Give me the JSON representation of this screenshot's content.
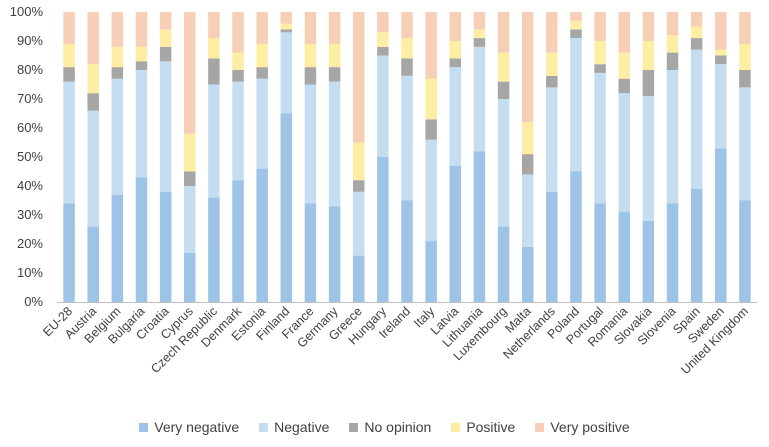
{
  "chart_data": {
    "type": "bar",
    "stacked": true,
    "percent": true,
    "ylim": [
      0,
      100
    ],
    "yticks": [
      "0%",
      "10%",
      "20%",
      "30%",
      "40%",
      "50%",
      "60%",
      "70%",
      "80%",
      "90%",
      "100%"
    ],
    "grid": false,
    "legend_position": "bottom",
    "categories": [
      "EU-28",
      "Austria",
      "Belgium",
      "Bulgaria",
      "Croatia",
      "Cyprus",
      "Czech Republic",
      "Denmark",
      "Estonia",
      "Finland",
      "France",
      "Germany",
      "Greece",
      "Hungary",
      "Ireland",
      "Italy",
      "Latvia",
      "Lithuania",
      "Luxembourg",
      "Malta",
      "Netherlands",
      "Poland",
      "Portugal",
      "Romania",
      "Slovakia",
      "Slovenia",
      "Spain",
      "Sweden",
      "United Kingdom"
    ],
    "series": [
      {
        "name": "Very negative",
        "color": "#9dc3e6",
        "values": [
          34,
          26,
          37,
          43,
          38,
          17,
          36,
          42,
          46,
          65,
          34,
          33,
          16,
          50,
          35,
          21,
          47,
          52,
          26,
          19,
          38,
          45,
          34,
          31,
          28,
          34,
          39,
          53,
          35
        ]
      },
      {
        "name": "Negative",
        "color": "#c5ddf0",
        "values": [
          42,
          40,
          40,
          37,
          45,
          23,
          39,
          34,
          31,
          28,
          41,
          43,
          22,
          35,
          43,
          35,
          34,
          36,
          44,
          25,
          36,
          46,
          45,
          41,
          43,
          46,
          48,
          29,
          39
        ]
      },
      {
        "name": "No opinion",
        "color": "#a6a6a6",
        "values": [
          5,
          6,
          4,
          3,
          5,
          5,
          9,
          4,
          4,
          1,
          6,
          5,
          4,
          3,
          6,
          7,
          3,
          3,
          6,
          7,
          4,
          3,
          3,
          5,
          9,
          6,
          4,
          3,
          6
        ]
      },
      {
        "name": "Positive",
        "color": "#fdeea3",
        "values": [
          8,
          10,
          7,
          5,
          6,
          13,
          7,
          6,
          8,
          2,
          8,
          8,
          13,
          5,
          7,
          14,
          6,
          3,
          10,
          11,
          8,
          3,
          8,
          9,
          10,
          6,
          4,
          2,
          9
        ]
      },
      {
        "name": "Very positive",
        "color": "#f6cfb6",
        "values": [
          11,
          18,
          12,
          12,
          6,
          42,
          9,
          14,
          11,
          4,
          11,
          11,
          45,
          7,
          9,
          23,
          10,
          6,
          14,
          38,
          14,
          3,
          10,
          14,
          10,
          8,
          5,
          13,
          11
        ]
      }
    ]
  }
}
